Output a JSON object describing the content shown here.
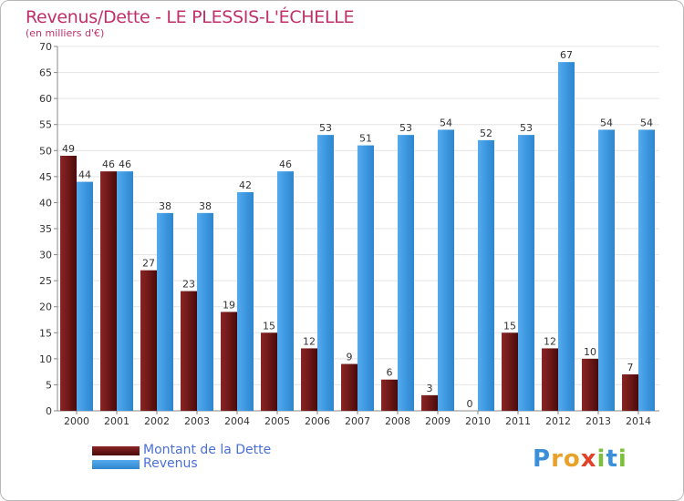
{
  "title": "Revenus/Dette - LE PLESSIS-L'ÉCHELLE",
  "subtitle": "(en milliers d'€)",
  "logo": "Proxiti",
  "colors": {
    "debt": "#6e1818",
    "revenue": "#3d98e0",
    "accent": "#c0306a",
    "legend_text": "#4a6fd8",
    "grid": "#e4e4e4",
    "axis_text": "#333333"
  },
  "chart_data": {
    "type": "bar",
    "title": "Revenus/Dette - LE PLESSIS-L'ÉCHELLE",
    "subtitle": "(en milliers d'€)",
    "categories": [
      "2000",
      "2001",
      "2002",
      "2003",
      "2004",
      "2005",
      "2006",
      "2007",
      "2008",
      "2009",
      "2010",
      "2011",
      "2012",
      "2013",
      "2014"
    ],
    "series": [
      {
        "name": "Montant de la Dette",
        "values": [
          49,
          46,
          27,
          23,
          19,
          15,
          12,
          9,
          6,
          3,
          0,
          15,
          12,
          10,
          7
        ]
      },
      {
        "name": "Revenus",
        "values": [
          44,
          46,
          38,
          38,
          42,
          46,
          53,
          51,
          53,
          54,
          52,
          53,
          67,
          54,
          54
        ]
      }
    ],
    "ylim": [
      0,
      70
    ],
    "yticks": [
      0,
      5,
      10,
      15,
      20,
      25,
      30,
      35,
      40,
      45,
      50,
      55,
      60,
      65,
      70
    ],
    "grid": true,
    "legend": "bottom-left"
  }
}
